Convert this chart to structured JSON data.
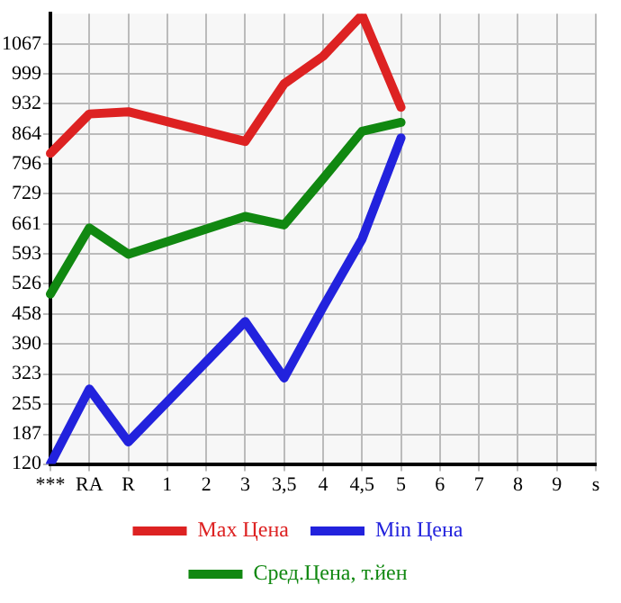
{
  "chart_data": {
    "type": "line",
    "categories": [
      "***",
      "RA",
      "R",
      "1",
      "2",
      "3",
      "3,5",
      "4",
      "4,5",
      "5",
      "6",
      "7",
      "8",
      "9",
      "s"
    ],
    "series": [
      {
        "name": "Max Цена",
        "color": "#dd2222",
        "values": [
          820,
          909,
          914,
          null,
          null,
          847,
          977,
          1039,
          1132,
          924,
          null,
          null,
          null,
          null,
          null
        ]
      },
      {
        "name": "Min Цена",
        "color": "#2222dd",
        "values": [
          120,
          289,
          170,
          null,
          null,
          441,
          314,
          474,
          627,
          855,
          null,
          null,
          null,
          null,
          null
        ]
      },
      {
        "name": "Сред.Цена, т.йен",
        "color": "#118811",
        "values": [
          503,
          652,
          593,
          null,
          null,
          678,
          659,
          763,
          870,
          890,
          null,
          null,
          null,
          null,
          null
        ]
      }
    ],
    "ylim": [
      120,
      1135
    ],
    "yticks": [
      120,
      187,
      255,
      323,
      390,
      458,
      526,
      593,
      661,
      729,
      796,
      864,
      932,
      999,
      1067
    ],
    "grid": true,
    "legend": "bottom",
    "marker": "none",
    "line_style": "solid"
  }
}
